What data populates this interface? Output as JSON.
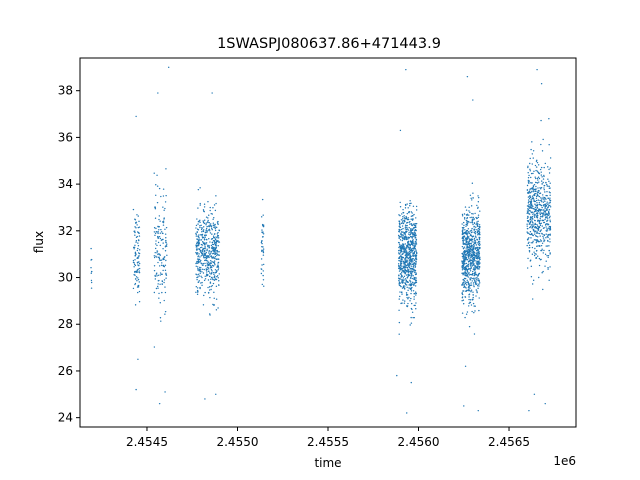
{
  "chart_data": {
    "type": "scatter",
    "title": "1SWASPJ080637.86+471443.9",
    "xlabel": "time",
    "ylabel": "flux",
    "x_offset_label": "1e6",
    "x_scale": 1000000,
    "xlim": [
      2454130,
      2456870
    ],
    "ylim": [
      23.6,
      39.4
    ],
    "x_ticks": [
      2454500,
      2455000,
      2455500,
      2456000,
      2456500
    ],
    "x_tick_labels": [
      "2.4545",
      "2.4550",
      "2.4555",
      "2.4560",
      "2.4565"
    ],
    "y_ticks": [
      24,
      26,
      28,
      30,
      32,
      34,
      36,
      38
    ],
    "y_tick_labels": [
      "24",
      "26",
      "28",
      "30",
      "32",
      "34",
      "36",
      "38"
    ],
    "grid": false,
    "point_color": "#1f77b4",
    "clusters": [
      {
        "x_range": [
          2454190,
          2454195
        ],
        "y_mean": 30.5,
        "y_sd": 0.6,
        "points": 10
      },
      {
        "x_range": [
          2454425,
          2454460
        ],
        "y_mean": 31.0,
        "y_sd": 0.9,
        "points": 100
      },
      {
        "x_range": [
          2454540,
          2454610
        ],
        "y_mean": 31.2,
        "y_sd": 1.2,
        "points": 160
      },
      {
        "x_range": [
          2454770,
          2454900
        ],
        "y_mean": 31.0,
        "y_sd": 0.9,
        "points": 520
      },
      {
        "x_range": [
          2455130,
          2455145
        ],
        "y_mean": 31.3,
        "y_sd": 0.8,
        "points": 40
      },
      {
        "x_range": [
          2455890,
          2455990
        ],
        "y_mean": 30.9,
        "y_sd": 1.0,
        "points": 750
      },
      {
        "x_range": [
          2456240,
          2456340
        ],
        "y_mean": 30.9,
        "y_sd": 1.0,
        "points": 750
      },
      {
        "x_range": [
          2456600,
          2456730
        ],
        "y_mean": 32.8,
        "y_sd": 1.1,
        "points": 600
      }
    ],
    "outliers": [
      [
        2454440,
        36.9
      ],
      [
        2454440,
        25.2
      ],
      [
        2454450,
        26.5
      ],
      [
        2454560,
        37.9
      ],
      [
        2454570,
        24.6
      ],
      [
        2454600,
        25.1
      ],
      [
        2454620,
        39.0
      ],
      [
        2454860,
        37.9
      ],
      [
        2454880,
        25.0
      ],
      [
        2454820,
        24.8
      ],
      [
        2455930,
        38.9
      ],
      [
        2455935,
        24.2
      ],
      [
        2455900,
        36.3
      ],
      [
        2455960,
        25.5
      ],
      [
        2455880,
        25.8
      ],
      [
        2456270,
        38.6
      ],
      [
        2456330,
        24.3
      ],
      [
        2456250,
        24.5
      ],
      [
        2456300,
        37.6
      ],
      [
        2456260,
        26.2
      ],
      [
        2456655,
        38.9
      ],
      [
        2456610,
        24.3
      ],
      [
        2456680,
        38.3
      ],
      [
        2456700,
        24.6
      ],
      [
        2456640,
        25.0
      ],
      [
        2456720,
        36.8
      ]
    ]
  }
}
